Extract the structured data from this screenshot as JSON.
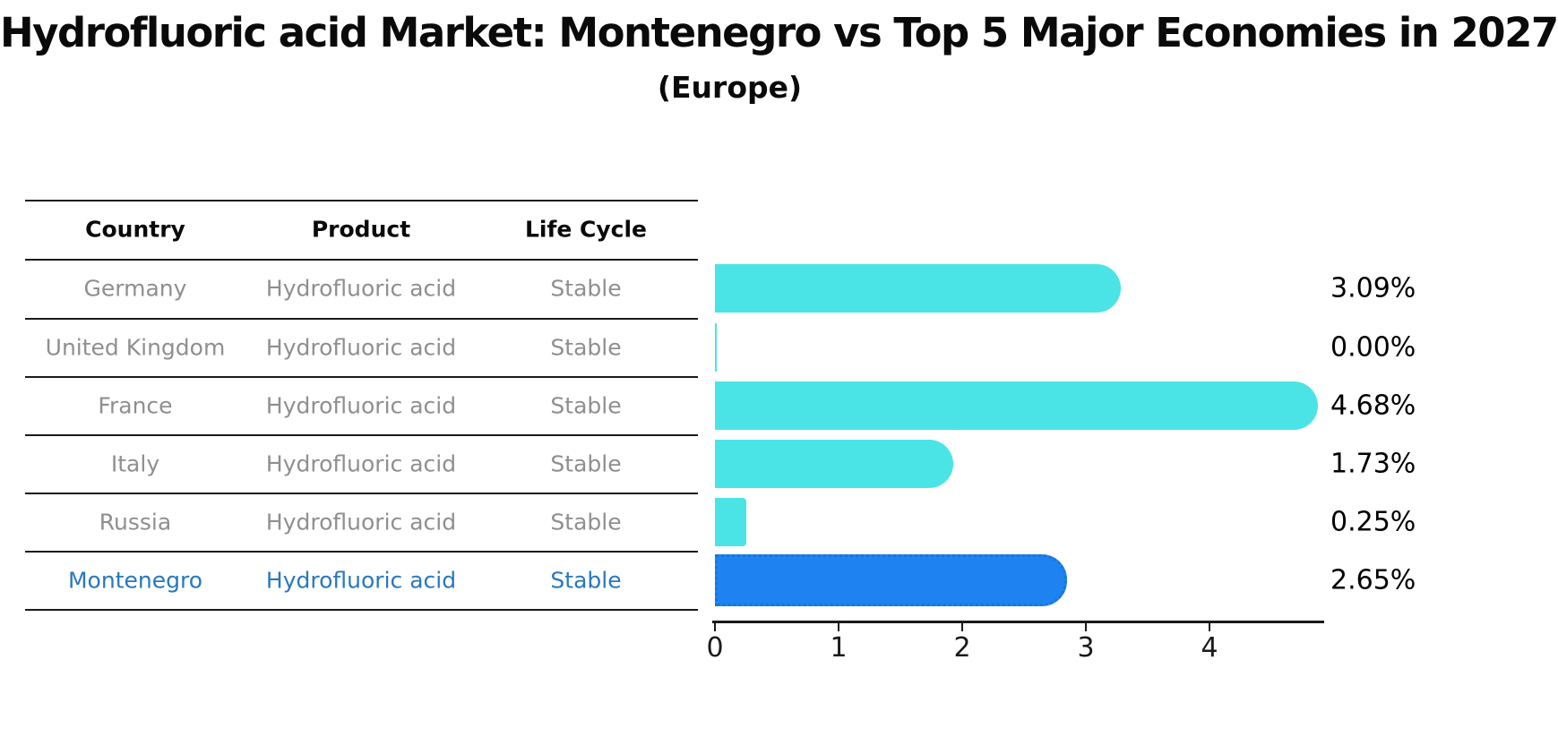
{
  "title": "Hydrofluoric acid Market: Montenegro vs Top 5 Major Economies in 2027",
  "subtitle": "(Europe)",
  "table": {
    "headers": [
      "Country",
      "Product",
      "Life Cycle"
    ],
    "rows": [
      {
        "country": "Germany",
        "product": "Hydrofluoric acid",
        "life_cycle": "Stable",
        "highlight": false
      },
      {
        "country": "United Kingdom",
        "product": "Hydrofluoric acid",
        "life_cycle": "Stable",
        "highlight": false
      },
      {
        "country": "France",
        "product": "Hydrofluoric acid",
        "life_cycle": "Stable",
        "highlight": false
      },
      {
        "country": "Italy",
        "product": "Hydrofluoric acid",
        "life_cycle": "Stable",
        "highlight": false
      },
      {
        "country": "Russia",
        "product": "Hydrofluoric acid",
        "life_cycle": "Stable",
        "highlight": false
      },
      {
        "country": "Montenegro",
        "product": "Hydrofluoric acid",
        "life_cycle": "Stable",
        "highlight": true
      }
    ]
  },
  "chart_data": {
    "type": "bar",
    "orientation": "horizontal",
    "title": "Hydrofluoric acid Market: Montenegro vs Top 5 Major Economies in 2027 (Europe)",
    "categories": [
      "Germany",
      "United Kingdom",
      "France",
      "Italy",
      "Russia",
      "Montenegro"
    ],
    "values": [
      3.09,
      0.0,
      4.68,
      1.73,
      0.25,
      2.65
    ],
    "value_labels": [
      "3.09%",
      "0.00%",
      "4.68%",
      "1.73%",
      "0.25%",
      "2.65%"
    ],
    "xlabel": "",
    "ylabel": "",
    "xticks": [
      "0",
      "1",
      "2",
      "3",
      "4"
    ],
    "xlim": [
      0,
      4.93
    ],
    "grid": false,
    "legend": "none",
    "highlight_category": "Montenegro",
    "colors": {
      "bar_default": "#4BE4E6",
      "bar_highlight": "#1E83F0",
      "highlight_text": "#2878be",
      "row_text": "#8f8f8f"
    }
  }
}
